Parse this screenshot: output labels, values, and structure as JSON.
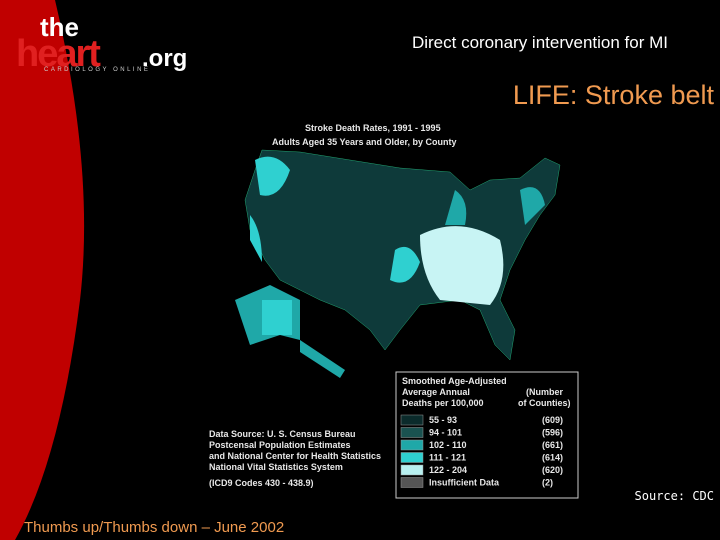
{
  "logo": {
    "top": "the",
    "main": "heart",
    "suffix": ".org",
    "tagline": "CARDIOLOGY ONLINE"
  },
  "header": {
    "title": "Direct coronary intervention for MI",
    "subtitle": "LIFE: Stroke belt"
  },
  "map": {
    "title": [
      "Stroke Death Rates, 1991 - 1995",
      "Adults Aged 35 Years and Older, by County"
    ],
    "legend": {
      "heading": [
        "Smoothed Age-Adjusted",
        "Average Annual",
        "Deaths per 100,000"
      ],
      "count_heading": [
        "(Number",
        "of Counties)"
      ],
      "rows": [
        [
          "55 - 93",
          "(609)"
        ],
        [
          "94 - 101",
          "(596)"
        ],
        [
          "102 - 110",
          "(661)"
        ],
        [
          "111 - 121",
          "(614)"
        ],
        [
          "122 - 204",
          "(620)"
        ],
        [
          "Insufficient Data",
          "(2)"
        ]
      ]
    },
    "source": [
      "Data Source: U. S. Census Bureau",
      "Postcensal Population Estimates",
      "and National Center for Health Statistics",
      "National Vital Statistics System",
      "(ICD9 Codes 430 - 438.9)"
    ]
  },
  "credit": "Source: CDC",
  "footer": "Thumbs up/Thumbs down – June 2002"
}
